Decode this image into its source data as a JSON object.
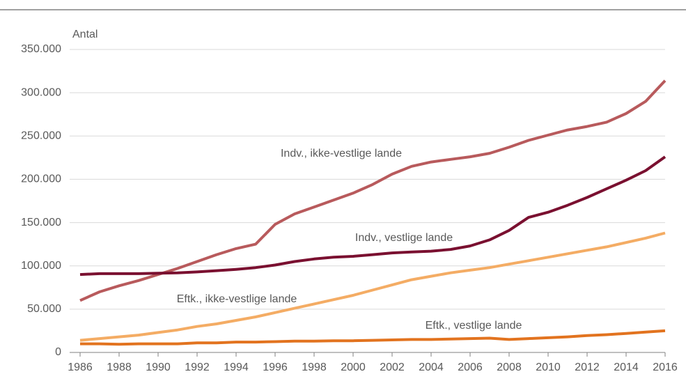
{
  "chart_data": {
    "type": "line",
    "ylabel": "Antal",
    "x": [
      1986,
      1987,
      1988,
      1989,
      1990,
      1991,
      1992,
      1993,
      1994,
      1995,
      1996,
      1997,
      1998,
      1999,
      2000,
      2001,
      2002,
      2003,
      2004,
      2005,
      2006,
      2007,
      2008,
      2009,
      2010,
      2011,
      2012,
      2013,
      2014,
      2015,
      2016
    ],
    "xlim": [
      1986,
      2016
    ],
    "xticks": [
      1986,
      1988,
      1990,
      1992,
      1994,
      1996,
      1998,
      2000,
      2002,
      2004,
      2006,
      2008,
      2010,
      2012,
      2014,
      2016
    ],
    "ylim": [
      0,
      350000
    ],
    "yticks": [
      0,
      {
        "value": 50000,
        "label": "50.000"
      },
      {
        "value": 100000,
        "label": "100.000"
      },
      {
        "value": 150000,
        "label": "150.000"
      },
      {
        "value": 200000,
        "label": "200.000"
      },
      {
        "value": 250000,
        "label": "250.000"
      },
      {
        "value": 300000,
        "label": "300.000"
      },
      {
        "value": 350000,
        "label": "350.000"
      }
    ],
    "grid": true,
    "series": [
      {
        "name": "Indv., ikke-vestlige lande",
        "color": "#b85a5c",
        "values": [
          60000,
          70000,
          77000,
          83000,
          90000,
          97000,
          105000,
          113000,
          120000,
          125000,
          148000,
          160000,
          168000,
          176000,
          184000,
          194000,
          206000,
          215000,
          220000,
          223000,
          226000,
          230000,
          237000,
          245000,
          251000,
          257000,
          261000,
          266000,
          276000,
          290000,
          314000
        ]
      },
      {
        "name": "Indv., vestlige lande",
        "color": "#7a1030",
        "values": [
          90000,
          91000,
          91000,
          91000,
          91500,
          92000,
          93000,
          94500,
          96000,
          98000,
          101000,
          105000,
          108000,
          110000,
          111000,
          113000,
          115000,
          116000,
          117000,
          119000,
          123000,
          130000,
          141000,
          156000,
          162000,
          170000,
          179000,
          189000,
          199000,
          210000,
          226000
        ]
      },
      {
        "name": "Eftk., ikke-vestlige lande",
        "color": "#f4ac64",
        "values": [
          14000,
          16000,
          18000,
          20000,
          23000,
          26000,
          30000,
          33000,
          37000,
          41000,
          46000,
          51000,
          56000,
          61000,
          66000,
          72000,
          78000,
          84000,
          88000,
          92000,
          95000,
          98000,
          102000,
          106000,
          110000,
          114000,
          118000,
          122000,
          127000,
          132000,
          138000
        ]
      },
      {
        "name": "Eftk., vestlige lande",
        "color": "#e2731f",
        "values": [
          10000,
          10000,
          9500,
          10000,
          10000,
          10000,
          11000,
          11000,
          12000,
          12000,
          12500,
          13000,
          13000,
          13500,
          13500,
          14000,
          14500,
          15000,
          15000,
          15500,
          16000,
          16500,
          15000,
          16000,
          17000,
          18000,
          19500,
          20500,
          22000,
          23500,
          25000
        ]
      }
    ]
  }
}
